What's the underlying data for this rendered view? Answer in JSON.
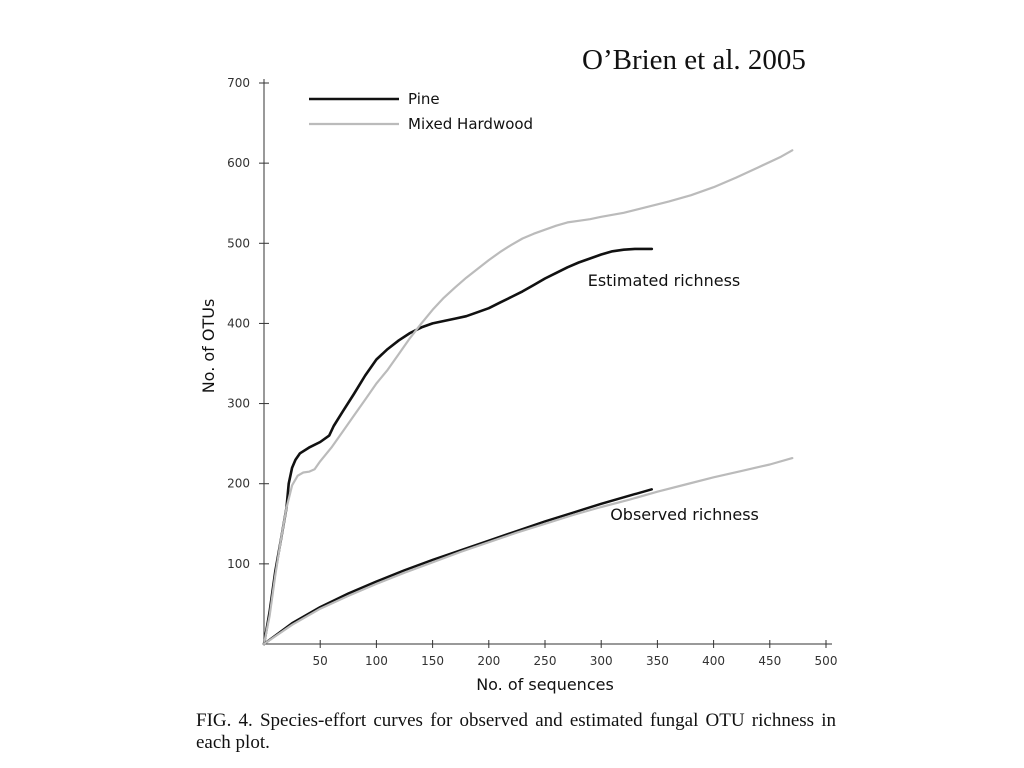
{
  "header": {
    "citation": "O’Brien et al. 2005"
  },
  "figure": {
    "caption": "FIG. 4. Species-effort curves for observed and estimated fungal OTU richness in each plot."
  },
  "chart_data": {
    "type": "line",
    "xlabel": "No. of sequences",
    "ylabel": "No. of OTUs",
    "xlim": [
      0,
      500
    ],
    "ylim": [
      0,
      700
    ],
    "xticks": [
      50,
      100,
      150,
      200,
      250,
      300,
      350,
      400,
      450,
      500
    ],
    "yticks": [
      100,
      200,
      300,
      400,
      500,
      600,
      700
    ],
    "grid": false,
    "legend": {
      "placement": "top-left",
      "entries": [
        {
          "label": "Pine",
          "color": "#111111"
        },
        {
          "label": "Mixed Hardwood",
          "color": "#bbbbbb"
        }
      ]
    },
    "annotations": [
      {
        "text": "Estimated richness",
        "x": 288,
        "y": 447
      },
      {
        "text": "Observed richness",
        "x": 308,
        "y": 155
      }
    ],
    "series": [
      {
        "name": "Pine",
        "group": "estimated",
        "color": "#111111",
        "width": 2.6,
        "points": [
          [
            0,
            0
          ],
          [
            5,
            40
          ],
          [
            10,
            90
          ],
          [
            15,
            130
          ],
          [
            20,
            170
          ],
          [
            22,
            200
          ],
          [
            25,
            220
          ],
          [
            28,
            230
          ],
          [
            32,
            238
          ],
          [
            40,
            245
          ],
          [
            50,
            252
          ],
          [
            58,
            260
          ],
          [
            62,
            272
          ],
          [
            70,
            290
          ],
          [
            80,
            312
          ],
          [
            90,
            335
          ],
          [
            100,
            355
          ],
          [
            110,
            368
          ],
          [
            120,
            379
          ],
          [
            130,
            388
          ],
          [
            140,
            395
          ],
          [
            150,
            400
          ],
          [
            160,
            403
          ],
          [
            170,
            406
          ],
          [
            180,
            409
          ],
          [
            190,
            414
          ],
          [
            200,
            419
          ],
          [
            210,
            426
          ],
          [
            220,
            433
          ],
          [
            230,
            440
          ],
          [
            240,
            448
          ],
          [
            250,
            456
          ],
          [
            260,
            463
          ],
          [
            270,
            470
          ],
          [
            280,
            476
          ],
          [
            290,
            481
          ],
          [
            300,
            486
          ],
          [
            310,
            490
          ],
          [
            320,
            492
          ],
          [
            330,
            493
          ],
          [
            345,
            493
          ]
        ]
      },
      {
        "name": "Mixed Hardwood",
        "group": "estimated",
        "color": "#bbbbbb",
        "width": 2.2,
        "points": [
          [
            0,
            0
          ],
          [
            5,
            35
          ],
          [
            10,
            85
          ],
          [
            15,
            130
          ],
          [
            20,
            170
          ],
          [
            25,
            198
          ],
          [
            30,
            210
          ],
          [
            35,
            214
          ],
          [
            40,
            215
          ],
          [
            45,
            218
          ],
          [
            50,
            228
          ],
          [
            60,
            245
          ],
          [
            70,
            265
          ],
          [
            80,
            285
          ],
          [
            90,
            305
          ],
          [
            100,
            325
          ],
          [
            110,
            342
          ],
          [
            120,
            362
          ],
          [
            130,
            382
          ],
          [
            140,
            400
          ],
          [
            150,
            417
          ],
          [
            160,
            432
          ],
          [
            170,
            445
          ],
          [
            180,
            457
          ],
          [
            190,
            468
          ],
          [
            200,
            479
          ],
          [
            210,
            489
          ],
          [
            220,
            498
          ],
          [
            230,
            506
          ],
          [
            240,
            512
          ],
          [
            250,
            517
          ],
          [
            260,
            522
          ],
          [
            270,
            526
          ],
          [
            280,
            528
          ],
          [
            290,
            530
          ],
          [
            300,
            533
          ],
          [
            320,
            538
          ],
          [
            340,
            545
          ],
          [
            360,
            552
          ],
          [
            380,
            560
          ],
          [
            400,
            570
          ],
          [
            420,
            582
          ],
          [
            440,
            595
          ],
          [
            460,
            608
          ],
          [
            470,
            616
          ]
        ]
      },
      {
        "name": "Pine",
        "group": "observed",
        "color": "#111111",
        "width": 2.4,
        "points": [
          [
            0,
            0
          ],
          [
            25,
            26
          ],
          [
            50,
            46
          ],
          [
            75,
            63
          ],
          [
            100,
            78
          ],
          [
            125,
            92
          ],
          [
            150,
            105
          ],
          [
            175,
            117
          ],
          [
            200,
            129
          ],
          [
            225,
            141
          ],
          [
            250,
            153
          ],
          [
            275,
            164
          ],
          [
            300,
            175
          ],
          [
            325,
            185
          ],
          [
            345,
            193
          ]
        ]
      },
      {
        "name": "Mixed Hardwood",
        "group": "observed",
        "color": "#bbbbbb",
        "width": 2.2,
        "points": [
          [
            0,
            0
          ],
          [
            25,
            24
          ],
          [
            50,
            44
          ],
          [
            75,
            60
          ],
          [
            100,
            75
          ],
          [
            125,
            89
          ],
          [
            150,
            102
          ],
          [
            175,
            115
          ],
          [
            200,
            127
          ],
          [
            225,
            139
          ],
          [
            250,
            150
          ],
          [
            275,
            161
          ],
          [
            300,
            171
          ],
          [
            325,
            180
          ],
          [
            350,
            190
          ],
          [
            375,
            199
          ],
          [
            400,
            208
          ],
          [
            425,
            216
          ],
          [
            450,
            224
          ],
          [
            470,
            232
          ]
        ]
      }
    ]
  }
}
